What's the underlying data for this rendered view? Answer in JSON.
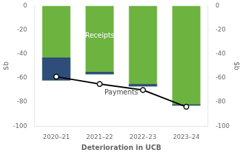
{
  "chart_data": {
    "type": "bar",
    "categories": [
      "2020–21",
      "2021–22",
      "2022–23",
      "2023–24"
    ],
    "series": [
      {
        "type": "bar",
        "color": "#6db33f",
        "values": [
          -62,
          -57,
          -67,
          -83
        ]
      },
      {
        "type": "bar",
        "color": "#2e4d7b",
        "values": [
          [
            -43,
            -62
          ],
          [
            -55,
            -57
          ],
          [
            -65,
            -67
          ],
          [
            -82,
            -83
          ]
        ]
      },
      {
        "type": "line",
        "color": "#000000",
        "marker": "circle",
        "values": [
          -59,
          -65,
          -70,
          -84
        ]
      }
    ],
    "xlabel": "Deterioration in UCB",
    "ylabel": "$b",
    "y2label": "$b",
    "ylim": [
      -100,
      0
    ],
    "yticks": [
      0,
      -20,
      -40,
      -60,
      -80,
      -100
    ],
    "y2lim": [
      -100,
      0
    ],
    "y2ticks": [
      0,
      -20,
      -40,
      -60,
      -80,
      -100
    ],
    "grid": false,
    "legend": false,
    "annotations": [
      {
        "text": "Receipts",
        "x": 1,
        "y": -25,
        "color": "#ffffff"
      },
      {
        "text": "Payments",
        "x": 1.5,
        "y": -72,
        "color": "#444444"
      }
    ]
  }
}
